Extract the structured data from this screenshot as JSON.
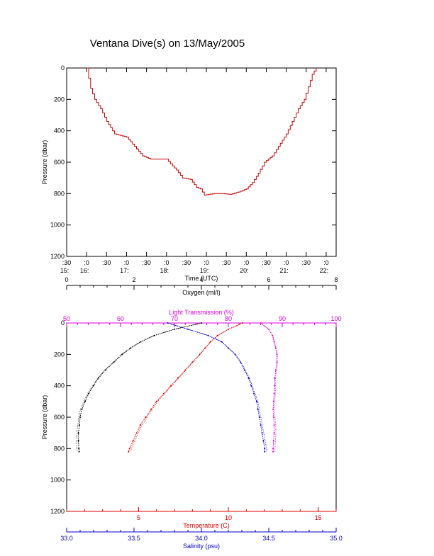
{
  "title": "Ventana Dive(s) on 13/May/2005",
  "colors": {
    "axis": "#000000",
    "trace": "#cc0000",
    "oxygen": "#000000",
    "temperature": "#dd0000",
    "salinity": "#0000cc",
    "transmission": "#dd00dd"
  },
  "chart_data": [
    {
      "type": "line",
      "name": "dive-profile",
      "xlabel": "Time (UTC)",
      "ylabel": "Pressure (dbar)",
      "ylim": [
        1200,
        0
      ],
      "xlim": [
        15.5,
        22.25
      ],
      "y_ticks": [
        0,
        200,
        400,
        600,
        800,
        1000,
        1200
      ],
      "y_tick_labels": [
        "0",
        "200",
        "400",
        "600",
        "800",
        "1000",
        "1200"
      ],
      "x_ticks": [
        15.5,
        16.0,
        16.5,
        17.0,
        17.5,
        18.0,
        18.5,
        19.0,
        19.5,
        20.0,
        20.5,
        21.0,
        21.5,
        22.0
      ],
      "x_tick_labels_minutes": [
        ":30",
        ":0",
        ":30",
        ":0",
        ":30",
        ":0",
        ":30",
        ":0",
        ":30",
        ":0",
        ":30",
        ":0",
        ":30",
        ":0"
      ],
      "x_tick_labels_hours": [
        "15:",
        "16:",
        "",
        "17:",
        "",
        "18:",
        "",
        "19:",
        "",
        "20:",
        "",
        "21:",
        "",
        "22:"
      ],
      "x": [
        16.0,
        16.1,
        16.2,
        16.35,
        16.5,
        16.7,
        17.0,
        17.2,
        17.4,
        17.6,
        17.9,
        18.0,
        18.1,
        18.25,
        18.4,
        18.6,
        18.75,
        18.85,
        18.95,
        19.05,
        19.2,
        19.4,
        19.6,
        19.8,
        20.0,
        20.15,
        20.3,
        20.45,
        20.55,
        20.65,
        20.75,
        20.85,
        21.0,
        21.15,
        21.3,
        21.45,
        21.55,
        21.65,
        21.75
      ],
      "y": [
        0,
        130,
        200,
        260,
        340,
        420,
        440,
        500,
        560,
        580,
        580,
        580,
        610,
        650,
        700,
        710,
        760,
        770,
        810,
        805,
        800,
        800,
        805,
        790,
        770,
        730,
        670,
        600,
        580,
        560,
        520,
        480,
        420,
        340,
        260,
        200,
        120,
        40,
        0
      ]
    },
    {
      "type": "scatter",
      "name": "ctd-profiles",
      "ylabel": "Pressure (dbar)",
      "ylim": [
        1200,
        0
      ],
      "y_ticks": [
        0,
        200,
        400,
        600,
        800,
        1000,
        1200
      ],
      "y_tick_labels": [
        "0",
        "200",
        "400",
        "600",
        "800",
        "1000",
        "1200"
      ],
      "axes": {
        "oxygen": {
          "label": "Oxygen (ml/l)",
          "range": [
            0,
            8
          ],
          "ticks": [
            0,
            2,
            4,
            6,
            8
          ],
          "tick_labels": [
            "0",
            "2",
            "4",
            "6",
            "8"
          ]
        },
        "transmission": {
          "label": "Light Transmission (%)",
          "range": [
            50,
            100
          ],
          "ticks": [
            50,
            60,
            70,
            80,
            90,
            100
          ],
          "tick_labels": [
            "50",
            "60",
            "70",
            "80",
            "90",
            "100"
          ]
        },
        "temperature": {
          "label": "Temperature (C)",
          "range": [
            1,
            16
          ],
          "ticks": [
            5,
            10,
            15
          ],
          "tick_labels": [
            "5",
            "10",
            "15"
          ]
        },
        "salinity": {
          "label": "Salinity (psu)",
          "range": [
            33.0,
            35.0
          ],
          "ticks": [
            33.0,
            33.5,
            34.0,
            34.5,
            35.0
          ],
          "tick_labels": [
            "33.0",
            "33.5",
            "34.0",
            "34.5",
            "35.0"
          ]
        }
      },
      "series": [
        {
          "key": "oxygen",
          "pressure": [
            0,
            40,
            80,
            120,
            160,
            200,
            250,
            300,
            350,
            400,
            450,
            500,
            550,
            600,
            650,
            700,
            750,
            800,
            820
          ],
          "value": [
            4.0,
            3.2,
            2.6,
            2.2,
            1.9,
            1.65,
            1.4,
            1.15,
            0.95,
            0.8,
            0.65,
            0.55,
            0.45,
            0.4,
            0.38,
            0.35,
            0.35,
            0.36,
            0.37
          ]
        },
        {
          "key": "temperature",
          "pressure": [
            0,
            40,
            80,
            120,
            160,
            200,
            250,
            300,
            350,
            400,
            450,
            500,
            550,
            600,
            650,
            700,
            750,
            800,
            820
          ],
          "value": [
            10.8,
            10.0,
            9.4,
            9.0,
            8.7,
            8.4,
            8.0,
            7.6,
            7.2,
            6.8,
            6.4,
            6.0,
            5.7,
            5.4,
            5.1,
            4.9,
            4.7,
            4.5,
            4.45
          ]
        },
        {
          "key": "salinity",
          "pressure": [
            0,
            40,
            80,
            120,
            160,
            200,
            250,
            300,
            350,
            400,
            450,
            500,
            550,
            600,
            650,
            700,
            750,
            800,
            820
          ],
          "value": [
            33.75,
            33.9,
            34.05,
            34.15,
            34.2,
            34.25,
            34.29,
            34.32,
            34.35,
            34.37,
            34.39,
            34.41,
            34.42,
            34.43,
            34.44,
            34.45,
            34.46,
            34.47,
            34.47
          ]
        },
        {
          "key": "transmission",
          "pressure": [
            0,
            40,
            80,
            120,
            160,
            200,
            250,
            300,
            350,
            400,
            450,
            500,
            550,
            600,
            650,
            700,
            750,
            800,
            820
          ],
          "value": [
            86.0,
            87.5,
            88.2,
            88.5,
            88.8,
            89.0,
            89.0,
            88.8,
            88.6,
            88.6,
            88.5,
            88.4,
            88.3,
            88.4,
            88.5,
            88.5,
            88.4,
            88.3,
            88.3
          ]
        }
      ]
    }
  ]
}
